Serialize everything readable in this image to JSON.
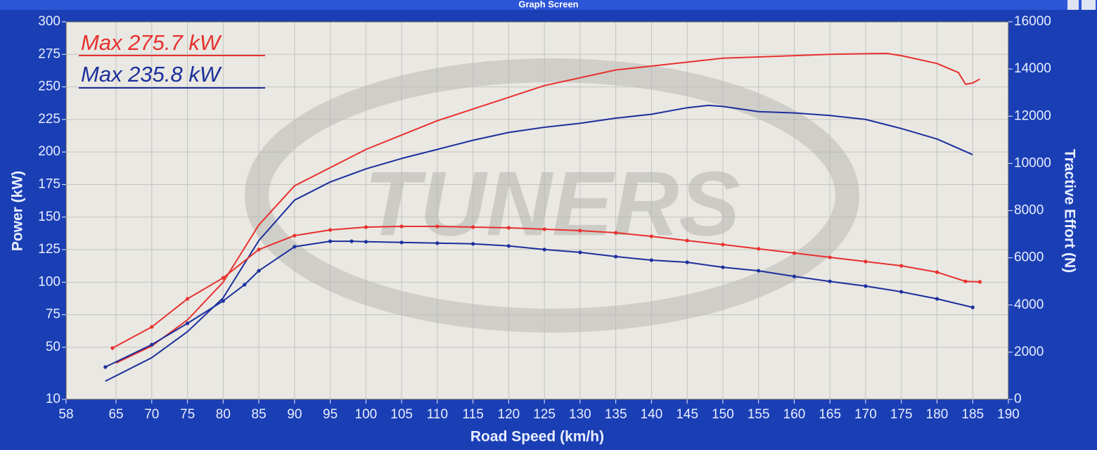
{
  "window_title": "Graph Screen",
  "chart_data": {
    "type": "line",
    "xlabel": "Road Speed (km/h)",
    "ylabel": "Power (kW)",
    "y2label": "Tractive Effort (N)",
    "watermark": "TUNERS",
    "xlim": [
      58,
      190
    ],
    "xticks": [
      58,
      65,
      70,
      75,
      80,
      85,
      90,
      95,
      100,
      105,
      110,
      115,
      120,
      125,
      130,
      135,
      140,
      145,
      150,
      155,
      160,
      165,
      170,
      175,
      180,
      185,
      190
    ],
    "ylim": [
      10,
      300
    ],
    "yticks": [
      10,
      50,
      75,
      100,
      125,
      150,
      175,
      200,
      225,
      250,
      275,
      300
    ],
    "y2lim": [
      0,
      16000
    ],
    "y2ticks": [
      0,
      2000,
      4000,
      6000,
      8000,
      10000,
      12000,
      14000,
      16000
    ],
    "grid": true,
    "series": [
      {
        "name": "Max 275.7 kW",
        "color": "#e8312e",
        "x": [
          65,
          70,
          75,
          80,
          85,
          90,
          95,
          100,
          105,
          110,
          115,
          120,
          125,
          130,
          135,
          140,
          145,
          150,
          155,
          160,
          165,
          170,
          173,
          175,
          180,
          183,
          184,
          185,
          186
        ],
        "values": [
          38,
          51,
          71,
          100,
          144,
          174,
          188,
          202,
          213,
          224,
          233,
          242,
          251,
          257,
          263,
          266,
          269,
          272,
          273,
          274,
          275,
          275.5,
          275.7,
          274,
          268,
          261,
          252,
          253,
          256
        ]
      },
      {
        "name": "Max 235.8 kW",
        "color": "#1c2f9c",
        "x": [
          63.5,
          70,
          75,
          80,
          85,
          90,
          95,
          100,
          105,
          110,
          115,
          120,
          125,
          130,
          135,
          140,
          145,
          148,
          150,
          155,
          160,
          165,
          170,
          175,
          180,
          185
        ],
        "values": [
          24,
          42,
          62,
          88,
          132,
          163,
          177,
          187,
          195,
          202,
          209,
          215,
          219,
          222,
          226,
          229,
          234,
          235.8,
          235,
          231,
          230,
          228,
          225,
          218,
          210,
          198
        ]
      },
      {
        "axis": "y2",
        "color": "#e8312e",
        "marker": true,
        "x": [
          64.5,
          70,
          75,
          80,
          85,
          90,
          95,
          100,
          105,
          110,
          115,
          120,
          125,
          130,
          135,
          140,
          145,
          150,
          155,
          160,
          165,
          170,
          175,
          180,
          184,
          186
        ],
        "values": [
          2175,
          3070,
          4260,
          5150,
          6350,
          6940,
          7180,
          7300,
          7330,
          7330,
          7300,
          7270,
          7210,
          7150,
          7060,
          6910,
          6730,
          6560,
          6380,
          6200,
          6020,
          5840,
          5660,
          5390,
          5000,
          4980
        ]
      },
      {
        "axis": "y2",
        "color": "#1c2f9c",
        "marker": true,
        "x": [
          63.5,
          70,
          75,
          80,
          83,
          85,
          90,
          95,
          98,
          100,
          105,
          110,
          115,
          120,
          125,
          130,
          135,
          140,
          145,
          150,
          155,
          160,
          165,
          170,
          175,
          180,
          185
        ],
        "values": [
          1370,
          2320,
          3220,
          4170,
          4860,
          5450,
          6470,
          6700,
          6700,
          6680,
          6650,
          6620,
          6590,
          6500,
          6350,
          6230,
          6050,
          5900,
          5810,
          5600,
          5450,
          5210,
          5000,
          4800,
          4560,
          4260,
          3900
        ]
      }
    ]
  }
}
